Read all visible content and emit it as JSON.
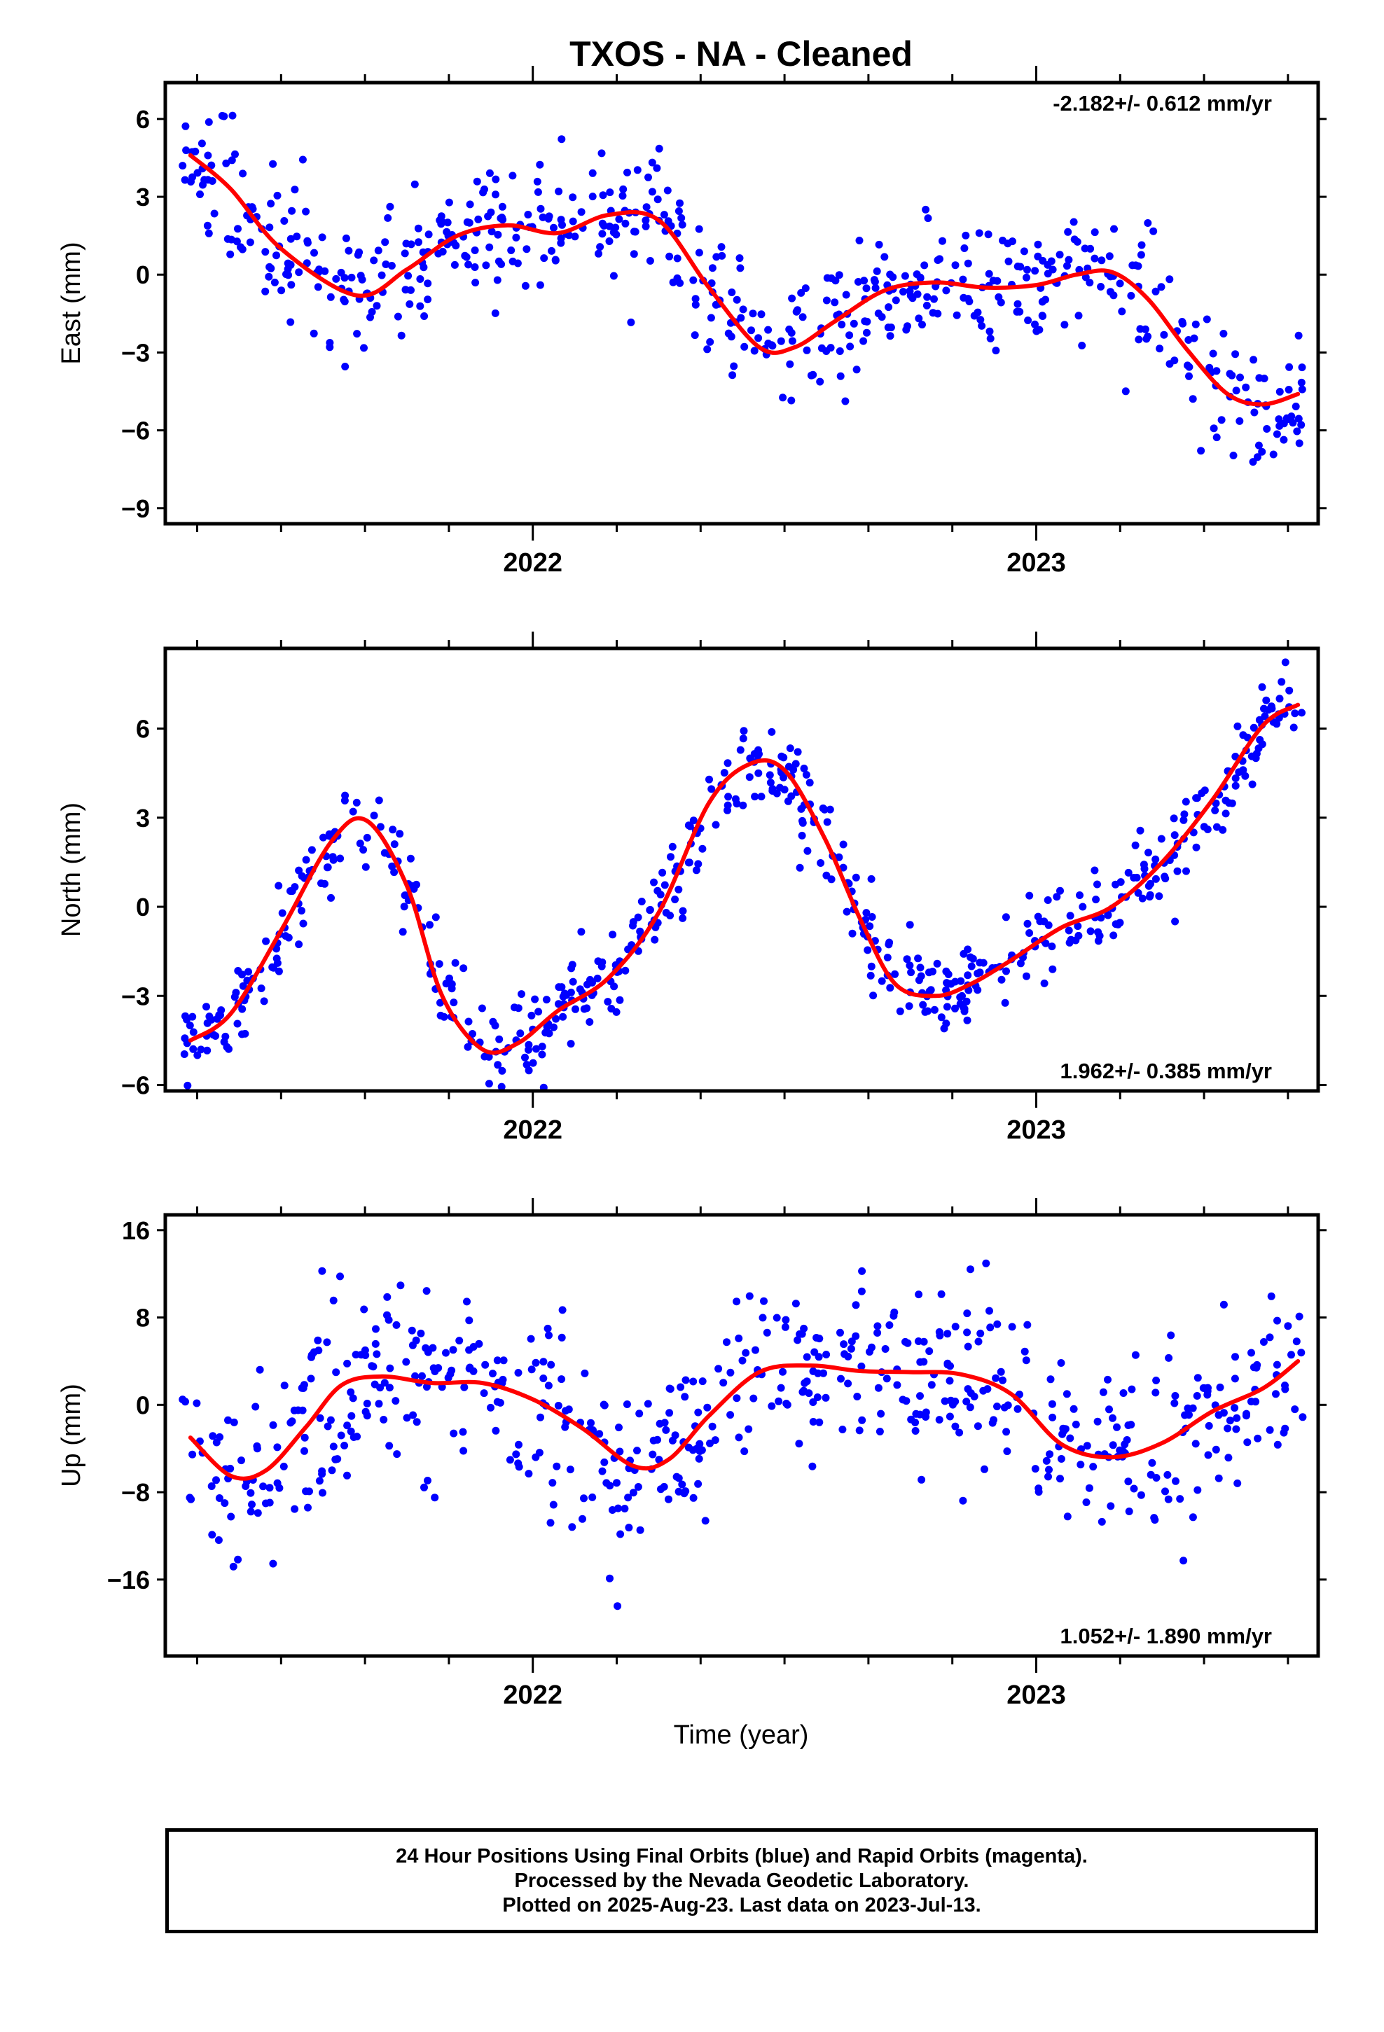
{
  "title": "TXOS  - NA - Cleaned",
  "xlabel": "Time (year)",
  "footer": {
    "line1": "24 Hour Positions Using Final Orbits (blue) and Rapid Orbits (magenta).",
    "line2": "Processed by the Nevada Geodetic Laboratory.",
    "line3": "Plotted on 2025-Aug-23. Last data on 2023-Jul-13."
  },
  "colors": {
    "points": "#0000ff",
    "fit": "#ff0000",
    "axes": "#000000"
  },
  "chart_data": [
    {
      "type": "scatter",
      "name": "east",
      "ylabel": "East (mm)",
      "rate_text": "-2.182+/- 0.612 mm/yr",
      "rate_position": "top-right",
      "xlim": [
        2021.27,
        2023.56
      ],
      "ylim": [
        -9.6,
        7.4
      ],
      "yticks": [
        6,
        3,
        0,
        -3,
        -6,
        -9
      ],
      "xticks": [
        2022,
        2023
      ],
      "fit_x": [
        2021.32,
        2021.4,
        2021.5,
        2021.65,
        2021.75,
        2021.85,
        2021.95,
        2022.05,
        2022.15,
        2022.25,
        2022.35,
        2022.45,
        2022.52,
        2022.6,
        2022.7,
        2022.8,
        2022.9,
        2023.0,
        2023.08,
        2023.15,
        2023.22,
        2023.3,
        2023.38,
        2023.45,
        2023.52
      ],
      "fit_y": [
        4.6,
        3.3,
        1.0,
        -0.8,
        0.2,
        1.5,
        1.9,
        1.6,
        2.3,
        2.1,
        -0.5,
        -2.8,
        -2.8,
        -1.8,
        -0.6,
        -0.3,
        -0.5,
        -0.4,
        0.0,
        0.1,
        -0.9,
        -2.9,
        -4.6,
        -5.0,
        -4.6
      ],
      "points": {
        "mode": "scatter about fit curve",
        "x_range": [
          2021.3,
          2023.53
        ],
        "spread_mm": 1.2,
        "count": 600
      }
    },
    {
      "type": "scatter",
      "name": "north",
      "ylabel": "North (mm)",
      "rate_text": "1.962+/- 0.385 mm/yr",
      "rate_position": "bottom-right",
      "xlim": [
        2021.27,
        2023.56
      ],
      "ylim": [
        -6.2,
        8.7
      ],
      "yticks": [
        6,
        3,
        0,
        -3,
        -6
      ],
      "xticks": [
        2022,
        2023
      ],
      "fit_x": [
        2021.32,
        2021.4,
        2021.5,
        2021.6,
        2021.67,
        2021.75,
        2021.82,
        2021.9,
        2021.97,
        2022.05,
        2022.15,
        2022.25,
        2022.35,
        2022.43,
        2022.5,
        2022.58,
        2022.65,
        2022.72,
        2022.8,
        2022.87,
        2022.95,
        2023.05,
        2023.15,
        2023.25,
        2023.35,
        2023.45,
        2023.52
      ],
      "fit_y": [
        -4.5,
        -3.6,
        -0.8,
        2.2,
        2.9,
        0.7,
        -3.0,
        -4.8,
        -4.6,
        -3.5,
        -2.4,
        -0.2,
        3.5,
        4.8,
        4.6,
        2.3,
        -0.4,
        -2.6,
        -3.0,
        -2.6,
        -1.8,
        -0.7,
        0.0,
        1.5,
        3.6,
        6.1,
        6.8
      ],
      "points": {
        "mode": "scatter about fit curve",
        "x_range": [
          2021.3,
          2023.53
        ],
        "spread_mm": 0.8,
        "count": 600
      }
    },
    {
      "type": "scatter",
      "name": "up",
      "ylabel": "Up (mm)",
      "rate_text": "1.052+/- 1.890 mm/yr",
      "rate_position": "bottom-right",
      "xlim": [
        2021.27,
        2023.56
      ],
      "ylim": [
        -23,
        17.4
      ],
      "yticks": [
        16,
        8,
        0,
        -8,
        -16
      ],
      "xticks": [
        2022,
        2023
      ],
      "fit_x": [
        2021.32,
        2021.4,
        2021.47,
        2021.55,
        2021.62,
        2021.7,
        2021.8,
        2021.9,
        2022.0,
        2022.1,
        2022.2,
        2022.27,
        2022.35,
        2022.45,
        2022.55,
        2022.65,
        2022.75,
        2022.85,
        2022.95,
        2023.05,
        2023.15,
        2023.25,
        2023.35,
        2023.45,
        2023.52
      ],
      "fit_y": [
        -3.0,
        -6.5,
        -6.0,
        -2.0,
        1.8,
        2.6,
        2.0,
        2.0,
        0.5,
        -2.2,
        -5.6,
        -5.0,
        -1.0,
        3.0,
        3.6,
        3.1,
        3.0,
        2.8,
        1.0,
        -3.6,
        -4.8,
        -3.5,
        -0.6,
        1.5,
        4.0
      ],
      "points": {
        "mode": "scatter about fit curve",
        "x_range": [
          2021.3,
          2023.53
        ],
        "spread_mm": 4.2,
        "count": 600
      }
    }
  ]
}
